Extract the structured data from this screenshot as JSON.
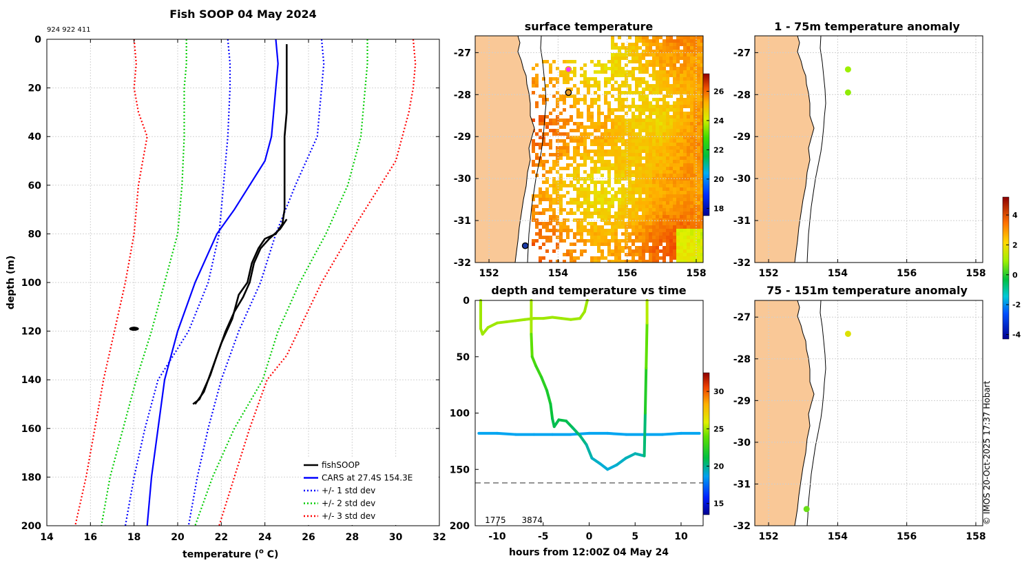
{
  "figure": {
    "main_title": "Fish SOOP 04 May 2024",
    "tag_ids": "924 922 411",
    "copyright": "© IMOS 20-Oct-2025 17:37 Hobart"
  },
  "chart_data": [
    {
      "id": "profile",
      "type": "line",
      "title": "Fish SOOP 04 May 2024",
      "xlabel": "temperature (",
      "xlabel_sup": "o",
      "xlabel_end": " C)",
      "ylabel": "depth (m)",
      "xlim": [
        14,
        32
      ],
      "ylim": [
        0,
        200
      ],
      "y_reversed": true,
      "grid": true,
      "xticks": [
        14,
        16,
        18,
        20,
        22,
        24,
        26,
        28,
        30,
        32
      ],
      "yticks": [
        0,
        20,
        40,
        60,
        80,
        100,
        120,
        140,
        160,
        180,
        200
      ],
      "legend_position": "bottom-right",
      "legend": [
        {
          "label": "fishSOOP",
          "color": "#000000",
          "style": "solid"
        },
        {
          "label": "CARS at 27.4S 154.3E",
          "color": "#0000ff",
          "style": "solid"
        },
        {
          "label": "+/- 1 std dev",
          "color": "#0000ff",
          "style": "dotted"
        },
        {
          "label": "+/- 2 std dev",
          "color": "#00cc00",
          "style": "dotted"
        },
        {
          "label": "+/- 3 std dev",
          "color": "#ff0000",
          "style": "dotted"
        }
      ],
      "series": [
        {
          "name": "CARS mean",
          "color": "#0000ff",
          "style": "solid",
          "points": [
            [
              24.5,
              0
            ],
            [
              24.6,
              10
            ],
            [
              24.5,
              20
            ],
            [
              24.3,
              40
            ],
            [
              24.0,
              50
            ],
            [
              23.3,
              60
            ],
            [
              22.6,
              70
            ],
            [
              21.8,
              80
            ],
            [
              20.8,
              100
            ],
            [
              20.0,
              120
            ],
            [
              19.4,
              140
            ],
            [
              19.1,
              160
            ],
            [
              18.8,
              180
            ],
            [
              18.6,
              200
            ]
          ]
        },
        {
          "name": "-1 std",
          "color": "#0000ff",
          "style": "dotted",
          "points": [
            [
              22.3,
              0
            ],
            [
              22.4,
              10
            ],
            [
              22.4,
              20
            ],
            [
              22.3,
              40
            ],
            [
              22.1,
              60
            ],
            [
              21.9,
              80
            ],
            [
              21.4,
              100
            ],
            [
              20.5,
              120
            ],
            [
              19.1,
              140
            ],
            [
              18.5,
              160
            ],
            [
              18.0,
              180
            ],
            [
              17.6,
              200
            ]
          ]
        },
        {
          "name": "+1 std",
          "color": "#0000ff",
          "style": "dotted",
          "points": [
            [
              26.6,
              0
            ],
            [
              26.7,
              10
            ],
            [
              26.6,
              20
            ],
            [
              26.4,
              40
            ],
            [
              25.9,
              50
            ],
            [
              25.4,
              60
            ],
            [
              24.5,
              80
            ],
            [
              23.8,
              100
            ],
            [
              22.8,
              120
            ],
            [
              22.0,
              140
            ],
            [
              21.4,
              160
            ],
            [
              20.9,
              180
            ],
            [
              20.5,
              200
            ]
          ]
        },
        {
          "name": "-2 std",
          "color": "#00cc00",
          "style": "dotted",
          "points": [
            [
              20.4,
              0
            ],
            [
              20.4,
              10
            ],
            [
              20.3,
              20
            ],
            [
              20.3,
              40
            ],
            [
              20.2,
              60
            ],
            [
              20.0,
              80
            ],
            [
              19.4,
              100
            ],
            [
              18.8,
              120
            ],
            [
              18.1,
              140
            ],
            [
              17.5,
              160
            ],
            [
              16.9,
              180
            ],
            [
              16.5,
              200
            ]
          ]
        },
        {
          "name": "+2 std",
          "color": "#00cc00",
          "style": "dotted",
          "points": [
            [
              28.7,
              0
            ],
            [
              28.7,
              10
            ],
            [
              28.6,
              20
            ],
            [
              28.4,
              40
            ],
            [
              27.8,
              60
            ],
            [
              26.8,
              80
            ],
            [
              25.6,
              100
            ],
            [
              24.6,
              120
            ],
            [
              23.9,
              140
            ],
            [
              22.6,
              160
            ],
            [
              21.6,
              180
            ],
            [
              20.8,
              200
            ]
          ]
        },
        {
          "name": "-3 std",
          "color": "#ff0000",
          "style": "dotted",
          "points": [
            [
              18.0,
              0
            ],
            [
              18.1,
              10
            ],
            [
              18.0,
              20
            ],
            [
              18.2,
              30
            ],
            [
              18.6,
              40
            ],
            [
              18.4,
              50
            ],
            [
              18.2,
              60
            ],
            [
              18.0,
              80
            ],
            [
              17.6,
              100
            ],
            [
              17.1,
              120
            ],
            [
              16.6,
              140
            ],
            [
              16.2,
              160
            ],
            [
              15.8,
              180
            ],
            [
              15.3,
              200
            ]
          ]
        },
        {
          "name": "+3 std",
          "color": "#ff0000",
          "style": "dotted",
          "points": [
            [
              30.8,
              0
            ],
            [
              30.9,
              10
            ],
            [
              30.8,
              20
            ],
            [
              30.6,
              30
            ],
            [
              30.3,
              40
            ],
            [
              30.0,
              50
            ],
            [
              29.3,
              60
            ],
            [
              28.6,
              70
            ],
            [
              27.9,
              80
            ],
            [
              26.6,
              100
            ],
            [
              25.8,
              115
            ],
            [
              25.0,
              130
            ],
            [
              24.1,
              140
            ],
            [
              23.3,
              160
            ],
            [
              22.6,
              180
            ],
            [
              21.9,
              200
            ]
          ]
        },
        {
          "name": "fishSOOP",
          "color": "#000000",
          "style": "solid",
          "points": [
            [
              25.0,
              2
            ],
            [
              25.0,
              20
            ],
            [
              25.0,
              30
            ],
            [
              24.9,
              40
            ],
            [
              24.9,
              60
            ],
            [
              24.9,
              70
            ],
            [
              24.8,
              76
            ],
            [
              24.5,
              80
            ],
            [
              24.0,
              82
            ],
            [
              23.7,
              86
            ],
            [
              23.4,
              92
            ],
            [
              23.2,
              100
            ],
            [
              22.8,
              105
            ],
            [
              22.5,
              115
            ],
            [
              22.0,
              125
            ],
            [
              21.6,
              135
            ],
            [
              21.2,
              145
            ],
            [
              20.8,
              150
            ]
          ]
        },
        {
          "name": "fishSOOP (cast 2)",
          "color": "#000000",
          "style": "solid",
          "points": [
            [
              25.0,
              74
            ],
            [
              24.7,
              78
            ],
            [
              24.2,
              82
            ],
            [
              23.8,
              86
            ],
            [
              23.5,
              92
            ],
            [
              23.3,
              100
            ],
            [
              23.0,
              106
            ],
            [
              22.6,
              112
            ],
            [
              22.2,
              120
            ],
            [
              21.8,
              130
            ],
            [
              21.5,
              138
            ],
            [
              21.3,
              142
            ],
            [
              21.0,
              148
            ],
            [
              20.7,
              150
            ]
          ]
        }
      ],
      "cluster": {
        "temperature": 18.0,
        "depth": 119
      }
    },
    {
      "id": "sst_map",
      "type": "heatmap",
      "title": "surface temperature",
      "xlim": [
        151.6,
        158.2
      ],
      "ylim": [
        -32,
        -26.6
      ],
      "xticks": [
        152,
        154,
        156,
        158
      ],
      "yticks": [
        -27,
        -28,
        -29,
        -30,
        -31,
        -32
      ],
      "colorbar": {
        "range": [
          17.5,
          27.2
        ],
        "ticks": [
          18,
          20,
          22,
          24,
          26
        ]
      },
      "markers": [
        {
          "lon": 154.3,
          "lat": -27.4,
          "color": "#ff33ff",
          "edge": "#e6c000"
        },
        {
          "lon": 154.3,
          "lat": -27.95,
          "color": "#e89a28",
          "edge": "#000000"
        },
        {
          "lon": 153.05,
          "lat": -31.6,
          "color": "#1a3aa8",
          "edge": "#000000"
        }
      ]
    },
    {
      "id": "depth_time",
      "type": "scatter",
      "title": "depth and temperature vs time",
      "xlabel": "hours from 12:00Z 04 May 24",
      "xlim": [
        -12.4,
        12.4
      ],
      "ylim": [
        0,
        200
      ],
      "y_reversed": true,
      "xticks": [
        -10,
        -5,
        0,
        5,
        10
      ],
      "yticks": [
        0,
        50,
        100,
        150,
        200
      ],
      "reference_depth": 162,
      "tag_labels": [
        {
          "text": "1775",
          "hours": -10.2
        },
        {
          "text": "3874",
          "hours": -6.2
        }
      ],
      "colorbar": {
        "range": [
          13.5,
          32.5
        ],
        "ticks": [
          15,
          20,
          25,
          30
        ]
      },
      "series": [
        {
          "name": "fish 1775",
          "color_temp": 25.0,
          "points": [
            [
              -11.8,
              0
            ],
            [
              -11.8,
              25
            ],
            [
              -11.6,
              30
            ],
            [
              -11.0,
              24
            ],
            [
              -10,
              20
            ],
            [
              -9,
              19
            ],
            [
              -8,
              18
            ],
            [
              -7,
              17
            ],
            [
              -6,
              16
            ],
            [
              -5,
              16
            ],
            [
              -4,
              15
            ],
            [
              -3,
              16
            ],
            [
              -2,
              17
            ],
            [
              -1,
              16
            ],
            [
              -0.5,
              10
            ],
            [
              -0.2,
              0
            ]
          ]
        },
        {
          "name": "fish 922",
          "color_temp": 18.7,
          "points": [
            [
              -12,
              118
            ],
            [
              -10,
              118
            ],
            [
              -8,
              119
            ],
            [
              -6,
              119
            ],
            [
              -4,
              119
            ],
            [
              -2,
              119
            ],
            [
              0,
              118
            ],
            [
              2,
              118
            ],
            [
              4,
              119
            ],
            [
              6,
              119
            ],
            [
              8,
              119
            ],
            [
              10,
              118
            ],
            [
              12,
              118
            ]
          ]
        },
        {
          "name": "fish 3874",
          "color_temp": 24.0,
          "points": [
            [
              -6.3,
              0
            ],
            [
              -6.3,
              30
            ],
            [
              -6.2,
              50
            ],
            [
              -5.8,
              58
            ],
            [
              -5.2,
              68
            ],
            [
              -4.6,
              80
            ],
            [
              -4.2,
              92
            ],
            [
              -4.0,
              105
            ],
            [
              -3.8,
              112
            ],
            [
              -3.3,
              106
            ],
            [
              -2.5,
              107
            ],
            [
              -1.8,
              113
            ],
            [
              -1.0,
              120
            ],
            [
              -0.3,
              128
            ],
            [
              0.3,
              140
            ],
            [
              1.2,
              145
            ],
            [
              2.0,
              150
            ],
            [
              3.0,
              146
            ],
            [
              4.0,
              140
            ],
            [
              5.0,
              136
            ],
            [
              6.0,
              138
            ],
            [
              6.1,
              100
            ],
            [
              6.2,
              60
            ],
            [
              6.3,
              20
            ],
            [
              6.3,
              0
            ]
          ]
        }
      ]
    },
    {
      "id": "anomaly_1_75",
      "type": "scatter",
      "title": "1 - 75m temperature anomaly",
      "xlim": [
        151.6,
        158.2
      ],
      "ylim": [
        -32,
        -26.6
      ],
      "xticks": [
        152,
        154,
        156,
        158
      ],
      "yticks": [
        -27,
        -28,
        -29,
        -30,
        -31,
        -32
      ],
      "points": [
        {
          "lon": 154.3,
          "lat": -27.4,
          "anomaly": 0.9
        },
        {
          "lon": 154.3,
          "lat": -27.95,
          "anomaly": 0.8
        }
      ]
    },
    {
      "id": "anomaly_75_151",
      "type": "scatter",
      "title": "75 - 151m temperature anomaly",
      "xlim": [
        151.6,
        158.2
      ],
      "ylim": [
        -32,
        -26.6
      ],
      "xticks": [
        152,
        154,
        156,
        158
      ],
      "yticks": [
        -27,
        -28,
        -29,
        -30,
        -31,
        -32
      ],
      "points": [
        {
          "lon": 154.3,
          "lat": -27.4,
          "anomaly": 1.7
        },
        {
          "lon": 153.1,
          "lat": -31.6,
          "anomaly": 0.5
        }
      ],
      "colorbar": {
        "range": [
          -4.3,
          5.2
        ],
        "ticks": [
          -4,
          -2,
          0,
          2,
          4
        ]
      }
    }
  ]
}
